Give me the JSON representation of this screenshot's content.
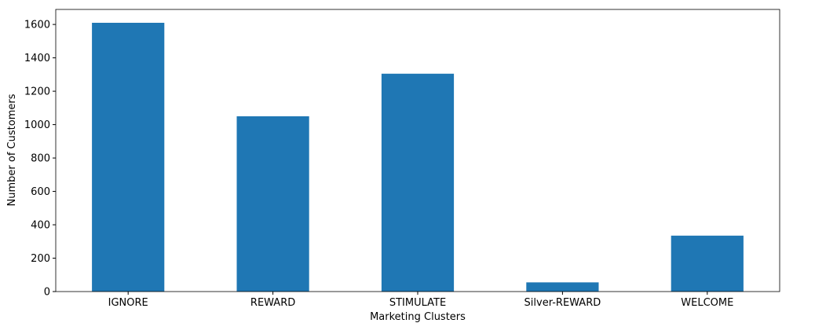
{
  "chart_data": {
    "type": "bar",
    "x_label": "Marketing Clusters",
    "y_label": "Number of Customers",
    "categories": [
      "IGNORE",
      "REWARD",
      "STIMULATE",
      "Silver-REWARD",
      "WELCOME"
    ],
    "values": [
      1610,
      1050,
      1305,
      55,
      335
    ],
    "color": "#1f77b4",
    "ylim": [
      0,
      1690
    ],
    "yticks": [
      0,
      200,
      400,
      600,
      800,
      1000,
      1200,
      1400,
      1600
    ],
    "grid": false
  }
}
